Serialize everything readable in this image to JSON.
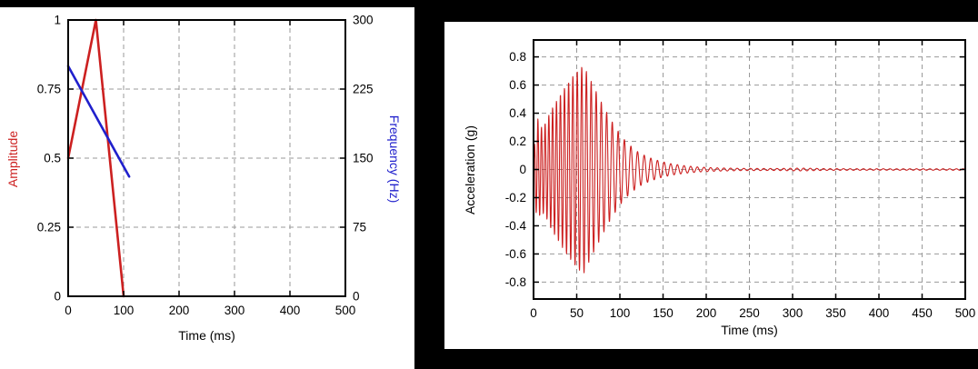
{
  "figure": {
    "background": "#000000",
    "panel_background": "#ffffff",
    "grid_color": "#999999",
    "frame_color": "#000000"
  },
  "chart_data": [
    {
      "id": "input-pulse-definition",
      "type": "line",
      "title": "",
      "xlabel": "Time (ms)",
      "xlim": [
        0,
        500
      ],
      "xticks": [
        0,
        100,
        200,
        300,
        400,
        500
      ],
      "grid": "dashed",
      "legend": "none",
      "y_left": {
        "label": "Amplitude",
        "color": "#cc2020",
        "lim": [
          0,
          1
        ],
        "ticks": [
          "0",
          "0.25",
          "0.5",
          "0.75",
          "1"
        ]
      },
      "y_right": {
        "label": "Frequency (Hz)",
        "color": "#2020cc",
        "lim": [
          0,
          300
        ],
        "ticks": [
          "0",
          "75",
          "150",
          "225",
          "300"
        ]
      },
      "series": [
        {
          "name": "amplitude-envelope",
          "axis": "left",
          "color": "#cc2020",
          "width": 2.6,
          "points": [
            [
              0,
              0.5
            ],
            [
              50,
              1.0
            ],
            [
              100,
              0.0
            ]
          ]
        },
        {
          "name": "frequency-sweep",
          "axis": "right",
          "color": "#2020cc",
          "width": 2.6,
          "points": [
            [
              0,
              250
            ],
            [
              110,
              130
            ]
          ]
        }
      ]
    },
    {
      "id": "acceleration-response",
      "type": "line",
      "title": "",
      "xlabel": "Time (ms)",
      "ylabel": "Acceleration (g)",
      "xlim": [
        0,
        500
      ],
      "xticks": [
        0,
        50,
        100,
        150,
        200,
        250,
        300,
        350,
        400,
        450,
        500
      ],
      "ylim": [
        -0.92,
        0.92
      ],
      "yticks": [
        "-0.8",
        "-0.6",
        "-0.4",
        "-0.2",
        "0",
        "0.2",
        "0.4",
        "0.6",
        "0.8"
      ],
      "grid": "dashed",
      "legend": "none",
      "signal": {
        "name": "acceleration",
        "color": "#cc2020",
        "width": 1.1,
        "model": "amplitude-modulated sine with frequency sweep and ring-down",
        "envelope_g": [
          [
            0,
            0.05
          ],
          [
            2,
            0.28
          ],
          [
            5,
            0.36
          ],
          [
            9,
            0.3
          ],
          [
            14,
            0.33
          ],
          [
            20,
            0.42
          ],
          [
            28,
            0.5
          ],
          [
            36,
            0.58
          ],
          [
            44,
            0.65
          ],
          [
            52,
            0.71
          ],
          [
            58,
            0.74
          ],
          [
            64,
            0.66
          ],
          [
            72,
            0.56
          ],
          [
            80,
            0.46
          ],
          [
            88,
            0.37
          ],
          [
            96,
            0.29
          ],
          [
            104,
            0.22
          ],
          [
            112,
            0.17
          ],
          [
            122,
            0.12
          ],
          [
            134,
            0.085
          ],
          [
            146,
            0.06
          ],
          [
            160,
            0.04
          ],
          [
            175,
            0.027
          ],
          [
            190,
            0.018
          ],
          [
            210,
            0.012
          ],
          [
            240,
            0.008
          ],
          [
            280,
            0.007
          ],
          [
            310,
            0.01
          ],
          [
            340,
            0.006
          ],
          [
            400,
            0.005
          ],
          [
            500,
            0.005
          ]
        ],
        "frequency_hz": {
          "start": 250,
          "end": 130,
          "sweep_ms": 110
        },
        "sample_step_ms": 0.25
      }
    }
  ]
}
